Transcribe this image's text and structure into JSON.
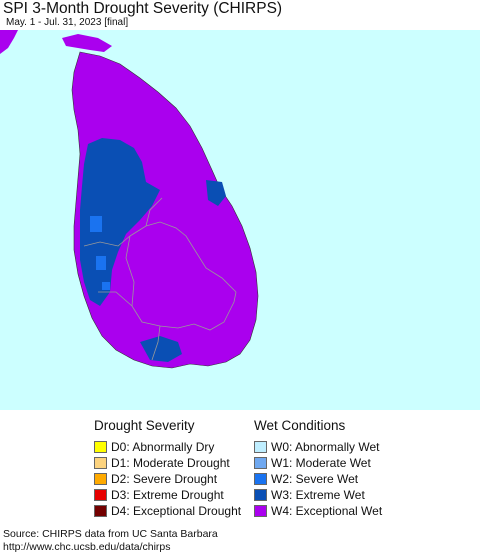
{
  "header": {
    "title": "SPI 3-Month Drought Severity (CHIRPS)",
    "subtitle": "May. 1 - Jul. 31, 2023 [final]"
  },
  "map": {
    "ocean_color": "#ccffff",
    "land_color": "#aa00ee",
    "w3_color": "#0a4fb4",
    "w2_color": "#1a73f0",
    "boundary_color": "#999999"
  },
  "legend": {
    "drought": {
      "heading": "Drought Severity",
      "items": [
        {
          "label": "D0: Abnormally Dry",
          "color": "#ffff00"
        },
        {
          "label": "D1: Moderate Drought",
          "color": "#fcd37f"
        },
        {
          "label": "D2: Severe Drought",
          "color": "#ffaa00"
        },
        {
          "label": "D3: Extreme Drought",
          "color": "#e60000"
        },
        {
          "label": "D4: Exceptional Drought",
          "color": "#730000"
        }
      ]
    },
    "wet": {
      "heading": "Wet Conditions",
      "items": [
        {
          "label": "W0: Abnormally Wet",
          "color": "#bfeeff"
        },
        {
          "label": "W1: Moderate Wet",
          "color": "#6fa8f0"
        },
        {
          "label": "W2: Severe Wet",
          "color": "#1a73f0"
        },
        {
          "label": "W3: Extreme Wet",
          "color": "#0a4fb4"
        },
        {
          "label": "W4: Exceptional Wet",
          "color": "#aa00ee"
        }
      ]
    }
  },
  "footer": {
    "source": "Source: CHIRPS data from UC Santa Barbara",
    "url": "http://www.chc.ucsb.edu/data/chirps"
  }
}
